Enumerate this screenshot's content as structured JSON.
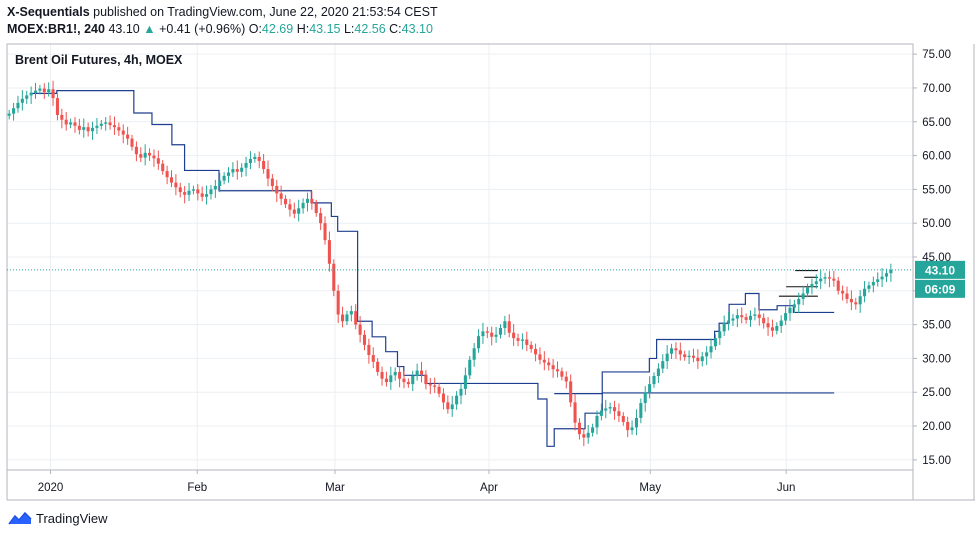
{
  "header": {
    "publisher": "X-Sequentials",
    "published_text": "published on TradingView.com, June 22, 2020 21:53:54 CEST",
    "symbol": "MOEX:BR1!, 240",
    "last": "43.10",
    "change_arrow": "▲",
    "change": "+0.41 (+0.96%)",
    "o_label": "O:",
    "o_value": "42.69",
    "h_label": "H:",
    "h_value": "43.15",
    "l_label": "L:",
    "l_value": "42.56",
    "c_label": "C:",
    "c_value": "43.10"
  },
  "footer": {
    "brand": "TradingView",
    "logo_icon": "tradingview-logo-icon"
  },
  "chart_data": {
    "type": "candlestick",
    "title": "Brent Oil Futures, 4h, MOEX",
    "price_axis": {
      "ticks": [
        15,
        20,
        25,
        30,
        35,
        40,
        45,
        50,
        55,
        60,
        65,
        70,
        75
      ],
      "labels": [
        "15.00",
        "20.00",
        "25.00",
        "30.00",
        "35.00",
        "40.00",
        "45.00",
        "50.00",
        "55.00",
        "60.00",
        "65.00",
        "70.00",
        "75.00"
      ]
    },
    "time_axis": {
      "labels": [
        "2020",
        "Feb",
        "Mar",
        "Apr",
        "May",
        "Jun"
      ]
    },
    "ylim": [
      13.5,
      76.5
    ],
    "last_price": "43.10",
    "countdown": "06:09",
    "colors": {
      "up": "#26a69a",
      "down": "#ef5350",
      "step": "#1e3f8f",
      "last": "#26a69a"
    },
    "close_series": [
      66.2,
      67.0,
      67.8,
      68.4,
      68.9,
      69.3,
      69.6,
      69.9,
      69.4,
      69.8,
      68.5,
      66.0,
      65.3,
      64.6,
      64.9,
      64.4,
      63.8,
      64.2,
      63.6,
      64.1,
      64.4,
      64.7,
      64.9,
      64.5,
      64.2,
      63.7,
      63.1,
      62.5,
      61.3,
      60.2,
      59.7,
      60.4,
      60.0,
      59.6,
      58.8,
      57.7,
      56.8,
      56.0,
      55.3,
      54.6,
      54.2,
      54.8,
      55.0,
      54.4,
      53.9,
      54.3,
      55.0,
      55.5,
      56.3,
      57.0,
      57.5,
      58.0,
      57.6,
      58.2,
      58.9,
      59.5,
      59.8,
      59.2,
      58.0,
      56.6,
      55.5,
      54.4,
      53.6,
      52.8,
      52.0,
      51.4,
      52.2,
      53.0,
      53.6,
      52.9,
      51.5,
      50.0,
      47.5,
      44.0,
      40.0,
      36.5,
      35.5,
      36.5,
      37.0,
      35.0,
      33.5,
      32.0,
      30.5,
      29.5,
      28.0,
      27.0,
      26.5,
      27.5,
      28.0,
      27.0,
      26.5,
      26.2,
      27.4,
      28.2,
      27.6,
      26.2,
      26.0,
      25.8,
      24.8,
      23.5,
      22.5,
      23.2,
      24.5,
      25.5,
      27.5,
      29.8,
      31.5,
      33.3,
      34.0,
      33.8,
      33.2,
      33.5,
      34.5,
      35.5,
      33.8,
      33.0,
      32.6,
      32.8,
      32.0,
      31.4,
      30.6,
      29.8,
      29.4,
      29.0,
      28.4,
      28.1,
      27.3,
      26.6,
      23.5,
      20.5,
      18.8,
      18.3,
      19.0,
      19.8,
      21.5,
      22.3,
      22.6,
      22.8,
      22.2,
      21.5,
      20.6,
      19.4,
      19.8,
      21.2,
      23.4,
      25.0,
      26.2,
      27.4,
      28.5,
      29.6,
      30.7,
      31.5,
      31.2,
      30.6,
      30.2,
      30.4,
      30.1,
      29.6,
      30.3,
      30.9,
      31.8,
      33.0,
      34.0,
      35.3,
      35.6,
      35.9,
      36.4,
      36.1,
      35.7,
      36.3,
      36.5,
      36.0,
      35.2,
      34.6,
      34.1,
      34.8,
      35.6,
      36.7,
      37.5,
      38.0,
      38.8,
      39.6,
      40.5,
      41.0,
      41.4,
      41.8,
      42.0,
      41.8,
      41.5,
      40.0,
      39.6,
      38.8,
      38.3,
      38.0,
      39.2,
      40.3,
      40.8,
      41.3,
      41.7,
      42.1,
      42.6,
      43.1
    ],
    "step_series_1": [
      {
        "x0": 0.028,
        "x1": 0.055,
        "v": 69.2
      },
      {
        "x0": 0.055,
        "x1": 0.14,
        "v": 69.6
      },
      {
        "x0": 0.14,
        "x1": 0.16,
        "v": 66.3
      },
      {
        "x0": 0.16,
        "x1": 0.182,
        "v": 64.6
      },
      {
        "x0": 0.182,
        "x1": 0.196,
        "v": 61.6
      },
      {
        "x0": 0.196,
        "x1": 0.234,
        "v": 57.8
      },
      {
        "x0": 0.234,
        "x1": 0.336,
        "v": 54.8
      },
      {
        "x0": 0.336,
        "x1": 0.358,
        "v": 53.0
      },
      {
        "x0": 0.358,
        "x1": 0.365,
        "v": 51.0
      },
      {
        "x0": 0.365,
        "x1": 0.387,
        "v": 48.8
      },
      {
        "x0": 0.387,
        "x1": 0.403,
        "v": 35.5
      },
      {
        "x0": 0.403,
        "x1": 0.418,
        "v": 33.2
      },
      {
        "x0": 0.418,
        "x1": 0.431,
        "v": 31.0
      },
      {
        "x0": 0.431,
        "x1": 0.438,
        "v": 28.8
      },
      {
        "x0": 0.438,
        "x1": 0.462,
        "v": 27.5
      },
      {
        "x0": 0.462,
        "x1": 0.586,
        "v": 26.3
      },
      {
        "x0": 0.586,
        "x1": 0.596,
        "v": 24.0
      },
      {
        "x0": 0.596,
        "x1": 0.604,
        "v": 17.0
      },
      {
        "x0": 0.604,
        "x1": 0.638,
        "v": 19.6
      },
      {
        "x0": 0.638,
        "x1": 0.657,
        "v": 21.9
      },
      {
        "x0": 0.657,
        "x1": 0.913,
        "v": 24.9
      }
    ],
    "step_series_2": [
      {
        "x0": 0.604,
        "x1": 0.657,
        "v": 24.8
      },
      {
        "x0": 0.657,
        "x1": 0.709,
        "v": 28.0
      },
      {
        "x0": 0.709,
        "x1": 0.717,
        "v": 30.0
      },
      {
        "x0": 0.717,
        "x1": 0.781,
        "v": 32.8
      },
      {
        "x0": 0.781,
        "x1": 0.786,
        "v": 34.0
      },
      {
        "x0": 0.786,
        "x1": 0.797,
        "v": 35.2
      },
      {
        "x0": 0.797,
        "x1": 0.815,
        "v": 38.0
      },
      {
        "x0": 0.815,
        "x1": 0.83,
        "v": 39.6
      },
      {
        "x0": 0.83,
        "x1": 0.85,
        "v": 37.2
      },
      {
        "x0": 0.85,
        "x1": 0.868,
        "v": 37.8
      },
      {
        "x0": 0.868,
        "x1": 0.913,
        "v": 36.8
      }
    ],
    "black_levels": [
      {
        "x0": 0.852,
        "x1": 0.895,
        "v": 39.2
      },
      {
        "x0": 0.86,
        "x1": 0.895,
        "v": 40.6
      },
      {
        "x0": 0.88,
        "x1": 0.895,
        "v": 42.0
      },
      {
        "x0": 0.87,
        "x1": 0.895,
        "v": 43.0
      }
    ]
  }
}
